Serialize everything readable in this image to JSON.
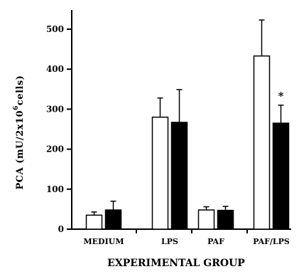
{
  "chart_data": {
    "type": "bar",
    "xlabel": "EXPERIMENTAL GROUP",
    "ylabel_main": "PCA (mU/2x10",
    "ylabel_exp": "6",
    "ylabel_tail": "cells)",
    "categories": [
      "MEDIUM",
      "LPS",
      "PAF",
      "PAF/LPS"
    ],
    "ylim": [
      0,
      550
    ],
    "yticks": [
      0,
      100,
      200,
      300,
      400,
      500
    ],
    "series": [
      {
        "fill": "#ffffff",
        "values": [
          35,
          280,
          48,
          433
        ],
        "errors": [
          8,
          48,
          8,
          90
        ]
      },
      {
        "fill": "#000000",
        "values": [
          48,
          267,
          47,
          265
        ],
        "errors": [
          22,
          82,
          10,
          45
        ]
      }
    ],
    "annotations": [
      {
        "text": "*",
        "category": "PAF/LPS",
        "series": 1
      }
    ],
    "grid": false,
    "legend": "none"
  }
}
